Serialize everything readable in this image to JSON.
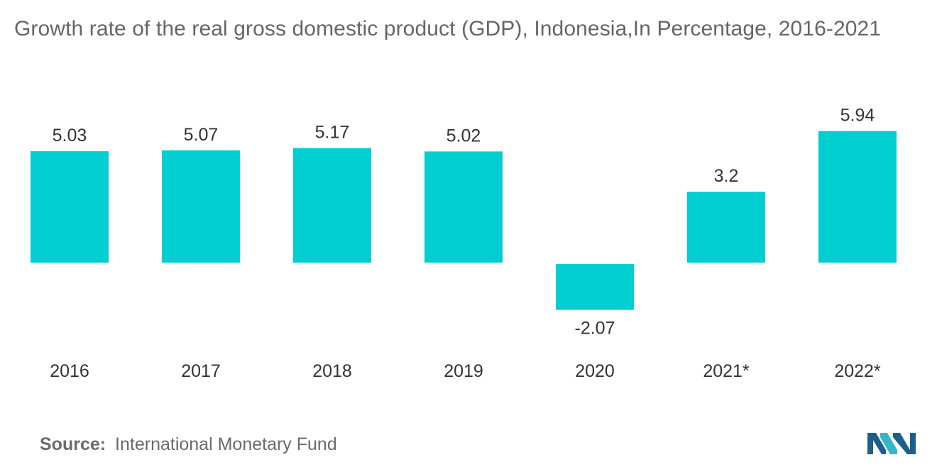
{
  "chart_data": {
    "type": "bar",
    "title": "Growth rate of the real gross domestic product (GDP), Indonesia,In Percentage, 2016-2021",
    "categories": [
      "2016",
      "2017",
      "2018",
      "2019",
      "2020",
      "2021*",
      "2022*"
    ],
    "values": [
      5.03,
      5.07,
      5.17,
      5.02,
      -2.07,
      3.2,
      5.94
    ],
    "value_labels": [
      "5.03",
      "5.07",
      "5.17",
      "5.02",
      "-2.07",
      "3.2",
      "5.94"
    ],
    "xlabel": "",
    "ylabel": "",
    "grid": false,
    "legend": "none",
    "bar_color": "#00CED1"
  },
  "source": {
    "label": "Source:",
    "text": "International Monetary Fund"
  },
  "colors": {
    "title": "#666666",
    "label": "#333333",
    "logo_dark": "#1b5f8a",
    "logo_light": "#35b6c9"
  }
}
